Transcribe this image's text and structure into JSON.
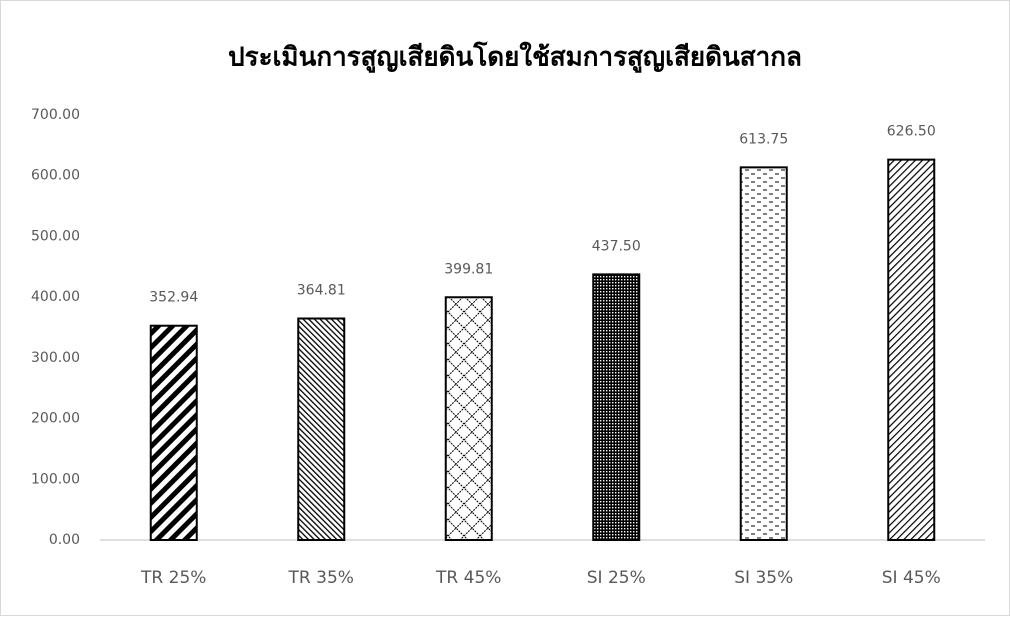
{
  "chart_data": {
    "type": "bar",
    "title": "ประเมินการสูญเสียดินโดยใช้สมการสูญเสียดินสากล",
    "categories": [
      "TR 25%",
      "TR 35%",
      "TR 45%",
      "SI 25%",
      "SI 35%",
      "SI 45%"
    ],
    "values": [
      352.94,
      364.81,
      399.81,
      437.5,
      613.75,
      626.5
    ],
    "value_labels": [
      "352.94",
      "364.81",
      "399.81",
      "437.50",
      "613.75",
      "626.50"
    ],
    "color": "#000000",
    "ylim": [
      0,
      700
    ],
    "yticks": [
      {
        "value": 0,
        "label": "0.00"
      },
      {
        "value": 100,
        "label": "100.00"
      },
      {
        "value": 200,
        "label": "200.00"
      },
      {
        "value": 300,
        "label": "300.00"
      },
      {
        "value": 400,
        "label": "400.00"
      },
      {
        "value": 500,
        "label": "500.00"
      },
      {
        "value": 600,
        "label": "600.00"
      },
      {
        "value": 700,
        "label": "700.00"
      }
    ],
    "grid": false
  }
}
